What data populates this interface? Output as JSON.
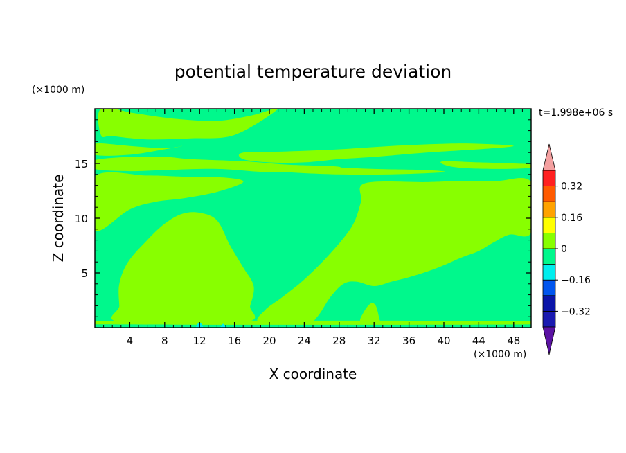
{
  "chart_data": {
    "type": "heatmap",
    "title": "potential temperature deviation",
    "xlabel": "X coordinate",
    "ylabel": "Z coordinate",
    "x_unit": "(×1000 m)",
    "y_unit": "(×1000 m)",
    "time_label": "t=1.998e+06 s",
    "xlim": [
      0,
      50
    ],
    "ylim": [
      0,
      20
    ],
    "x_ticks": [
      4,
      8,
      12,
      16,
      20,
      24,
      28,
      32,
      36,
      40,
      44,
      48
    ],
    "y_ticks": [
      5,
      10,
      15
    ],
    "background_level": -0.08,
    "colorbar": {
      "levels": [
        -0.4,
        -0.32,
        -0.24,
        -0.16,
        -0.08,
        0,
        0.08,
        0.16,
        0.24,
        0.32,
        0.4
      ],
      "tick_labels": [
        {
          "value": 0.32,
          "label": "0.32"
        },
        {
          "value": 0.16,
          "label": "0.16"
        },
        {
          "value": 0,
          "label": "0"
        },
        {
          "value": -0.16,
          "label": "−0.16"
        },
        {
          "value": -0.32,
          "label": "−0.32"
        }
      ],
      "colors": [
        "#5b12a3",
        "#1a1ab0",
        "#0a14a8",
        "#0055ee",
        "#00eeee",
        "#00f88c",
        "#88ff00",
        "#ffff00",
        "#ffa200",
        "#ff5a00",
        "#ff2020",
        "#f4a0a0"
      ],
      "extend": "both"
    },
    "regions": [
      {
        "level": 0,
        "points": [
          [
            0.7,
            20
          ],
          [
            4.5,
            19.6
          ],
          [
            9,
            19.1
          ],
          [
            14,
            18.9
          ],
          [
            18,
            19.4
          ],
          [
            21,
            20
          ],
          [
            16,
            17.6
          ],
          [
            11,
            17.3
          ],
          [
            6,
            17.2
          ],
          [
            2,
            17.5
          ],
          [
            0.7,
            17.6
          ]
        ]
      },
      {
        "level": 0,
        "points": [
          [
            0,
            16.8
          ],
          [
            4,
            16.6
          ],
          [
            8,
            16.4
          ],
          [
            10,
            16.6
          ],
          [
            8,
            16.3
          ],
          [
            4,
            15.8
          ],
          [
            0,
            15.8
          ]
        ]
      },
      {
        "level": 0,
        "points": [
          [
            0,
            15.3
          ],
          [
            4,
            15.6
          ],
          [
            8,
            15.6
          ],
          [
            11,
            15.4
          ],
          [
            17,
            15.2
          ],
          [
            22,
            14.9
          ],
          [
            28,
            14.7
          ],
          [
            26,
            14.3
          ],
          [
            20,
            14.2
          ],
          [
            14,
            14.5
          ],
          [
            8,
            14.4
          ],
          [
            4,
            14.3
          ],
          [
            0,
            14.5
          ]
        ]
      },
      {
        "level": 0,
        "points": [
          [
            17,
            16.0
          ],
          [
            22,
            16.1
          ],
          [
            28,
            16.3
          ],
          [
            34,
            16.6
          ],
          [
            40,
            16.8
          ],
          [
            44,
            16.8
          ],
          [
            48,
            16.6
          ],
          [
            44,
            16.3
          ],
          [
            38,
            16.0
          ],
          [
            32,
            15.6
          ],
          [
            28,
            15.4
          ],
          [
            24,
            15.1
          ],
          [
            20,
            15.1
          ],
          [
            17,
            15.4
          ]
        ]
      },
      {
        "level": 0,
        "points": [
          [
            40,
            15.2
          ],
          [
            44,
            15.1
          ],
          [
            48,
            15.0
          ],
          [
            50,
            14.9
          ],
          [
            50,
            14.6
          ],
          [
            46,
            14.5
          ],
          [
            42,
            14.6
          ],
          [
            40,
            14.9
          ]
        ]
      },
      {
        "level": 0,
        "points": [
          [
            20,
            14.8
          ],
          [
            26,
            14.7
          ],
          [
            32,
            14.5
          ],
          [
            38,
            14.4
          ],
          [
            40,
            14.2
          ],
          [
            34,
            14.0
          ],
          [
            28,
            14.0
          ],
          [
            22,
            14.2
          ],
          [
            20,
            14.4
          ]
        ]
      },
      {
        "level": 0,
        "points": [
          [
            0,
            13.8
          ],
          [
            6,
            13.9
          ],
          [
            10,
            13.8
          ],
          [
            15,
            13.7
          ],
          [
            17,
            13.3
          ],
          [
            14,
            12.4
          ],
          [
            10,
            11.8
          ],
          [
            7,
            11.5
          ],
          [
            4,
            10.8
          ],
          [
            0,
            8.9
          ]
        ]
      },
      {
        "level": 0,
        "points": [
          [
            0,
            13.3
          ],
          [
            4,
            13.3
          ],
          [
            6,
            13.0
          ],
          [
            4,
            12.8
          ],
          [
            0,
            12.9
          ]
        ]
      },
      {
        "level": 0,
        "points": [
          [
            3,
            0.5
          ],
          [
            2.8,
            2
          ],
          [
            2.8,
            4
          ],
          [
            3.8,
            6
          ],
          [
            6,
            8
          ],
          [
            8,
            9.5
          ],
          [
            10,
            10.4
          ],
          [
            12,
            10.5
          ],
          [
            14,
            9.8
          ],
          [
            15.5,
            7.5
          ],
          [
            17,
            5.5
          ],
          [
            18.2,
            3.8
          ],
          [
            17.8,
            2
          ],
          [
            17.1,
            0.5
          ]
        ]
      },
      {
        "level": 0,
        "points": [
          [
            18.9,
            0.5
          ],
          [
            19.5,
            1.6
          ],
          [
            21.5,
            2.8
          ],
          [
            24,
            4.4
          ],
          [
            27,
            6.8
          ],
          [
            29.5,
            9.3
          ],
          [
            30.5,
            11.5
          ],
          [
            31,
            13.2
          ],
          [
            38,
            13.3
          ],
          [
            42,
            13.4
          ],
          [
            46,
            13.4
          ],
          [
            50,
            13.3
          ],
          [
            50,
            8.7
          ],
          [
            47.5,
            8.5
          ],
          [
            45.5,
            7.7
          ],
          [
            44,
            7.0
          ],
          [
            42,
            6.4
          ],
          [
            40,
            5.7
          ],
          [
            38,
            5.1
          ],
          [
            36,
            4.6
          ],
          [
            34,
            4.2
          ],
          [
            32,
            3.8
          ],
          [
            30,
            4.2
          ],
          [
            28.5,
            4.0
          ],
          [
            27,
            2.8
          ],
          [
            25.5,
            1.0
          ],
          [
            24.2,
            0.5
          ]
        ]
      },
      {
        "level": 0,
        "points": [
          [
            30.5,
            0.5
          ],
          [
            30.8,
            1.4
          ],
          [
            31.6,
            2.2
          ],
          [
            32.2,
            2.0
          ],
          [
            32.6,
            0.8
          ],
          [
            32.6,
            0.5
          ]
        ]
      },
      {
        "level": 0,
        "points": [
          [
            0,
            0.3
          ],
          [
            50,
            0.3
          ],
          [
            50,
            0.6
          ],
          [
            0,
            0.6
          ]
        ]
      },
      {
        "level": -0.16,
        "points": [
          [
            11.6,
            0
          ],
          [
            12,
            0.5
          ],
          [
            12.4,
            0
          ]
        ]
      },
      {
        "level": -0.16,
        "points": [
          [
            14.4,
            0
          ],
          [
            14.7,
            0.35
          ],
          [
            15,
            0
          ]
        ]
      }
    ]
  }
}
